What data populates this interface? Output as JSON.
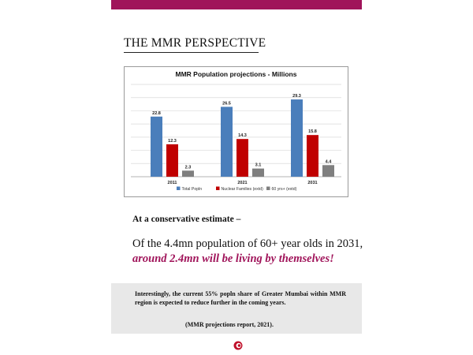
{
  "page": {
    "heading": "THE MMR PERSPECTIVE",
    "estimate": "At a conservative estimate –",
    "stat_line": "Of the 4.4mn population of 60+ year olds in 2031,",
    "highlight": "around 2.4mn will be living by themselves!",
    "note": {
      "text": "Interestingly, the current 55% popln share of Greater Mumbai within MMR region is expected to reduce further in the coming years.",
      "source": "(MMR projections report, 2021)."
    },
    "colors": {
      "accent": "#a0145a",
      "note_background": "#e8e8e8"
    },
    "logo_icon": "circular-logo-icon"
  },
  "chart_data": {
    "type": "bar",
    "title": "MMR Population projections - Millions",
    "categories": [
      "2011",
      "2021",
      "2031"
    ],
    "series": [
      {
        "name": "Total Popln",
        "values": [
          22.8,
          26.5,
          29.3
        ],
        "labels": [
          "22.8",
          "26.5",
          "29.3"
        ],
        "color": "#4a7ebb"
      },
      {
        "name": "Nuclear Families (extd)",
        "values": [
          12.3,
          14.3,
          15.8
        ],
        "labels": [
          "12.3",
          "14.3",
          "15.8"
        ],
        "color": "#c00000"
      },
      {
        "name": "60 yrs+ (extd)",
        "values": [
          2.3,
          3.1,
          4.4
        ],
        "labels": [
          "2.3",
          "3.1",
          "4.4"
        ],
        "color": "#7f7f7f"
      }
    ],
    "ylim": [
      0,
      35
    ],
    "yticks": [
      0,
      5,
      10,
      15,
      20,
      25,
      30,
      35
    ],
    "grid": true,
    "legend": "bottom"
  }
}
